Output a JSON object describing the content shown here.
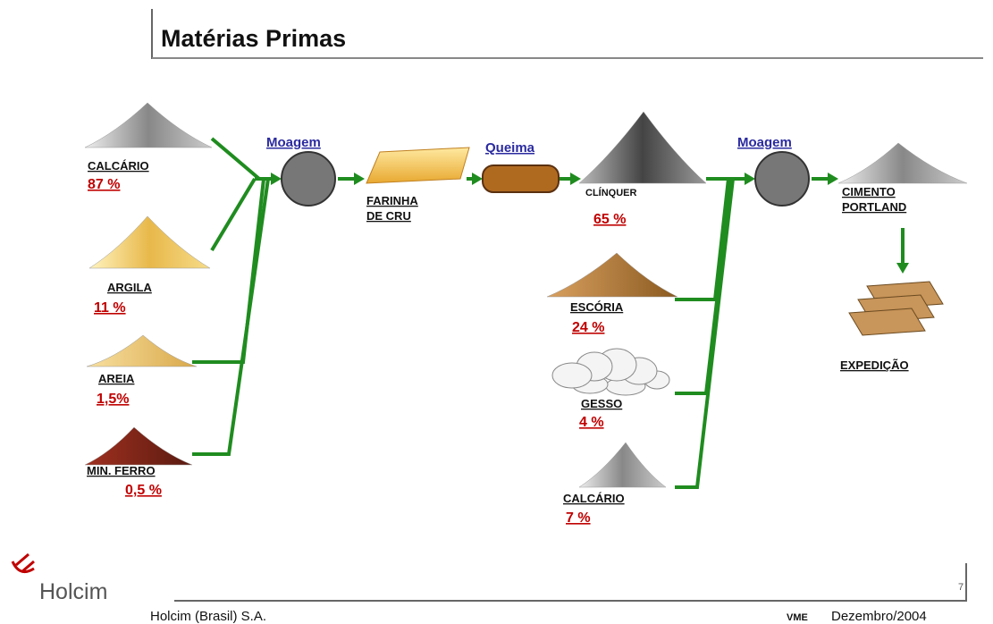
{
  "header": {
    "title": "Matérias Primas"
  },
  "process_steps": [
    "Moagem",
    "Queima",
    "Moagem"
  ],
  "raw_materials": [
    {
      "label": "CALCÁRIO",
      "share": "87 %"
    },
    {
      "label": "ARGILA",
      "share": "11 %"
    },
    {
      "label": "AREIA",
      "share": "1,5%"
    },
    {
      "label": "MIN. FERRO",
      "share": "0,5 %"
    }
  ],
  "raw_meal": [
    "FARINHA",
    "DE CRU"
  ],
  "clinker": {
    "label": "CLÍNQUER",
    "share": "65 %"
  },
  "additions": [
    {
      "label": "ESCÓRIA",
      "share": "24 %"
    },
    {
      "label": "GESSO",
      "share": "4 %"
    },
    {
      "label": "CALCÁRIO",
      "share": "7 %"
    }
  ],
  "cement": [
    "CIMENTO",
    "PORTLAND"
  ],
  "shipping": "EXPEDIÇÃO",
  "footer": {
    "logo": "Holcim",
    "company": "Holcim (Brasil) S.A.",
    "department": "VME",
    "date": "Dezembro/2004",
    "page": "7"
  }
}
